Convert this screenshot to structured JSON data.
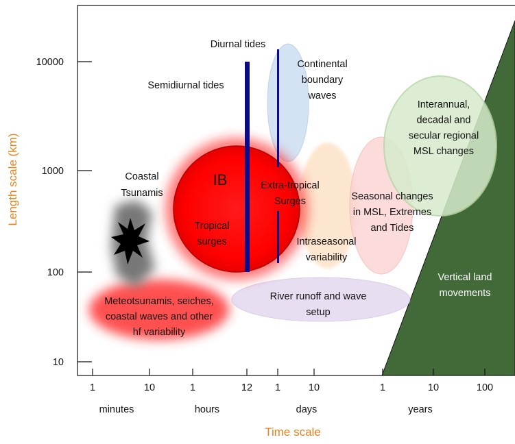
{
  "axes": {
    "y_title": "Length scale  (km)",
    "x_title": "Time scale",
    "y_ticks": [
      "10000",
      "1000",
      "100",
      "10"
    ],
    "x_ticks": [
      "1",
      "10",
      "1",
      "12",
      "1",
      "10",
      "1",
      "10",
      "100"
    ],
    "x_units": [
      "minutes",
      "hours",
      "days",
      "years"
    ]
  },
  "regions": [
    {
      "lines": [
        "Diurnal tides"
      ]
    },
    {
      "lines": [
        "Semidiurnal tides"
      ]
    },
    {
      "lines": [
        "Continental",
        "boundary",
        "waves"
      ]
    },
    {
      "lines": [
        "Interannual,",
        "decadal and",
        "secular regional",
        "MSL changes"
      ]
    },
    {
      "lines": [
        "Coastal",
        "Tsunamis"
      ]
    },
    {
      "lines": [
        "IB"
      ]
    },
    {
      "lines": [
        "Extra-tropical",
        "Surges"
      ]
    },
    {
      "lines": [
        "Seasonal changes",
        "in MSL, Extremes",
        "and Tides"
      ]
    },
    {
      "lines": [
        "Tropical",
        "surges"
      ]
    },
    {
      "lines": [
        "Intraseasonal",
        "variability"
      ]
    },
    {
      "lines": [
        "Vertical land",
        "movements"
      ]
    },
    {
      "lines": [
        "River runoff and wave",
        "setup"
      ]
    },
    {
      "lines": [
        "Meteotsunamis, seiches,",
        "coastal waves and other",
        "hf variability"
      ]
    }
  ]
}
